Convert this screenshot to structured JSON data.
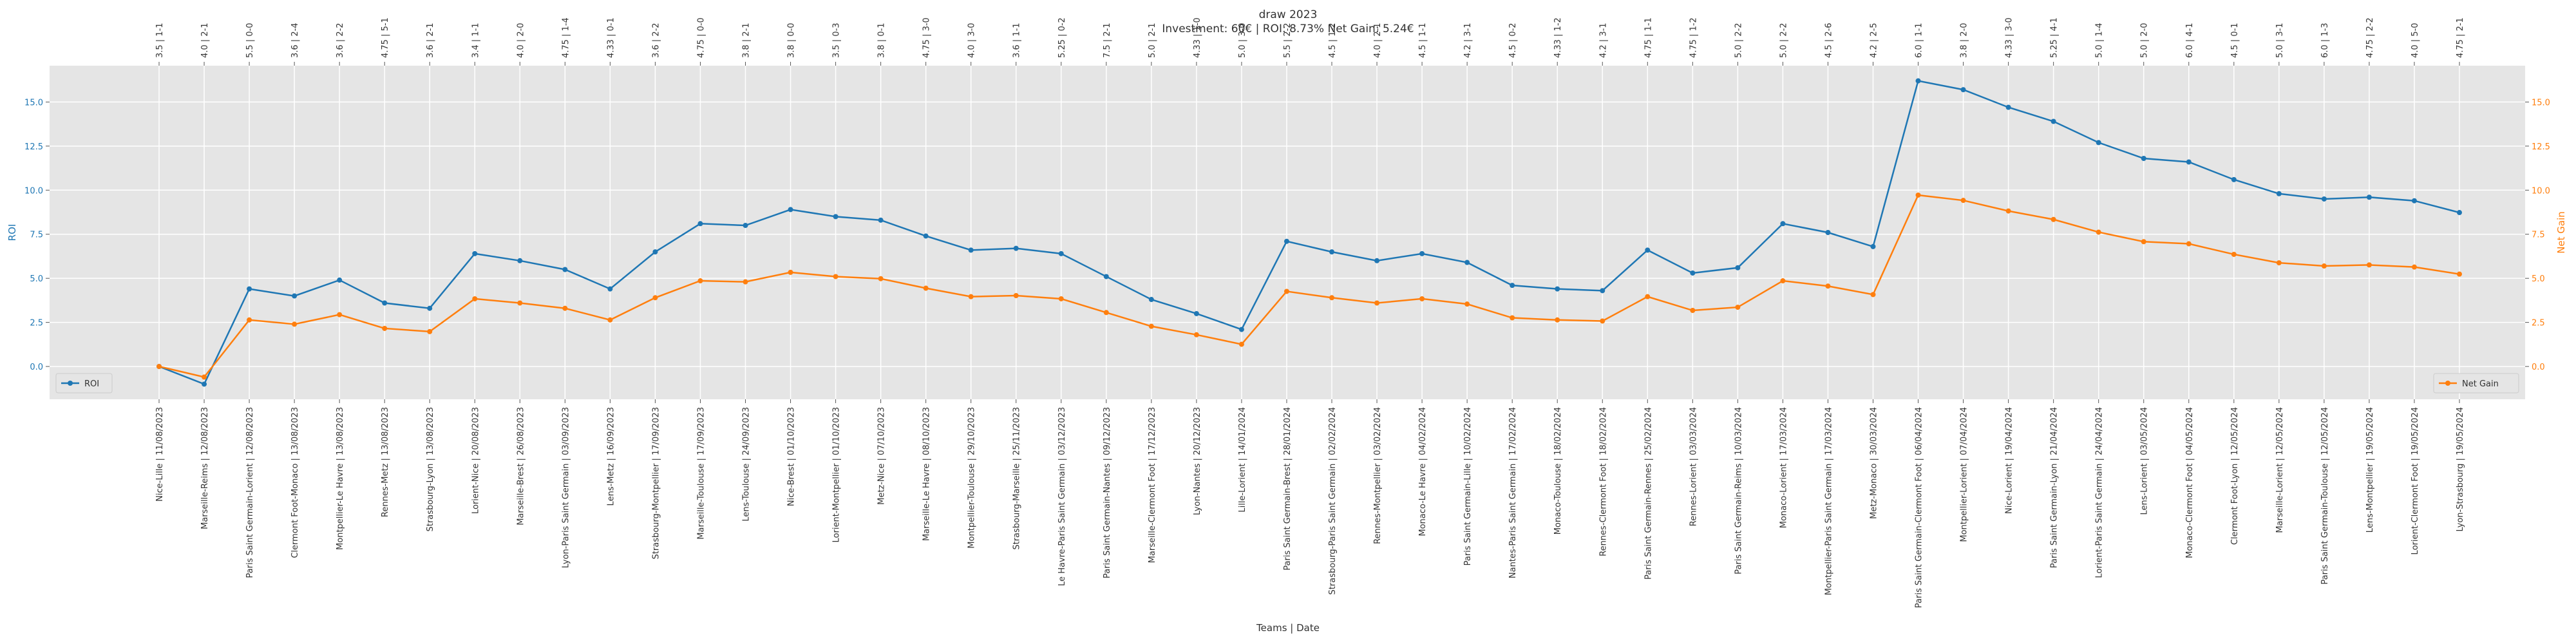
{
  "chart_data": {
    "type": "line",
    "title": "draw 2023",
    "subtitle": "Investment: 60€ | ROI: 8.73% Net Gain: 5.24€",
    "x_label": "Teams | Date",
    "y_label": "ROI",
    "y2_label": "Net Gain",
    "categories": [
      "Nice-Lille | 11/08/2023",
      "Marseille-Reims | 12/08/2023",
      "Paris Saint Germain-Lorient | 12/08/2023",
      "Clermont Foot-Monaco | 13/08/2023",
      "Montpellier-Le Havre | 13/08/2023",
      "Rennes-Metz | 13/08/2023",
      "Strasbourg-Lyon | 13/08/2023",
      "Lorient-Nice | 20/08/2023",
      "Marseille-Brest | 26/08/2023",
      "Lyon-Paris Saint Germain | 03/09/2023",
      "Lens-Metz | 16/09/2023",
      "Strasbourg-Montpellier | 17/09/2023",
      "Marseille-Toulouse | 17/09/2023",
      "Lens-Toulouse | 24/09/2023",
      "Nice-Brest | 01/10/2023",
      "Lorient-Montpellier | 01/10/2023",
      "Metz-Nice | 07/10/2023",
      "Marseille-Le Havre | 08/10/2023",
      "Montpellier-Toulouse | 29/10/2023",
      "Strasbourg-Marseille | 25/11/2023",
      "Le Havre-Paris Saint Germain | 03/12/2023",
      "Paris Saint Germain-Nantes | 09/12/2023",
      "Marseille-Clermont Foot | 17/12/2023",
      "Lyon-Nantes | 20/12/2023",
      "Lille-Lorient | 14/01/2024",
      "Paris Saint Germain-Brest | 28/01/2024",
      "Strasbourg-Paris Saint Germain | 02/02/2024",
      "Rennes-Montpellier | 03/02/2024",
      "Monaco-Le Havre | 04/02/2024",
      "Paris Saint Germain-Lille | 10/02/2024",
      "Nantes-Paris Saint Germain | 17/02/2024",
      "Monaco-Toulouse | 18/02/2024",
      "Rennes-Clermont Foot | 18/02/2024",
      "Paris Saint Germain-Rennes | 25/02/2024",
      "Rennes-Lorient | 03/03/2024",
      "Paris Saint Germain-Reims | 10/03/2024",
      "Monaco-Lorient | 17/03/2024",
      "Montpellier-Paris Saint Germain | 17/03/2024",
      "Metz-Monaco | 30/03/2024",
      "Paris Saint Germain-Clermont Foot | 06/04/2024",
      "Montpellier-Lorient | 07/04/2024",
      "Nice-Lorient | 19/04/2024",
      "Paris Saint Germain-Lyon | 21/04/2024",
      "Lorient-Paris Saint Germain | 24/04/2024",
      "Lens-Lorient | 03/05/2024",
      "Monaco-Clermont Foot | 04/05/2024",
      "Clermont Foot-Lyon | 12/05/2024",
      "Marseille-Lorient | 12/05/2024",
      "Paris Saint Germain-Toulouse | 12/05/2024",
      "Lens-Montpellier | 19/05/2024",
      "Lorient-Clermont Foot | 19/05/2024",
      "Lyon-Strasbourg | 19/05/2024"
    ],
    "top_labels": [
      "3.5 | 1-1",
      "4.0 | 2-1",
      "5.5 | 0-0",
      "3.6 | 2-4",
      "3.6 | 2-2",
      "4.75 | 5-1",
      "3.6 | 2-1",
      "3.4 | 1-1",
      "4.0 | 2-0",
      "4.75 | 1-4",
      "4.33 | 0-1",
      "3.6 | 2-2",
      "4.75 | 0-0",
      "3.8 | 2-1",
      "3.8 | 0-0",
      "3.5 | 0-3",
      "3.8 | 0-1",
      "4.75 | 3-0",
      "4.0 | 3-0",
      "3.6 | 1-1",
      "5.25 | 0-2",
      "7.5 | 2-1",
      "5.0 | 2-1",
      "4.33 | 1-0",
      "5.0 | 3-0",
      "5.5 | 2-2",
      "4.5 | 1-2",
      "4.0 | 2-1",
      "4.5 | 1-1",
      "4.2 | 3-1",
      "4.5 | 0-2",
      "4.33 | 1-2",
      "4.2 | 3-1",
      "4.75 | 1-1",
      "4.75 | 1-2",
      "5.0 | 2-2",
      "5.0 | 2-2",
      "4.5 | 2-6",
      "4.2 | 2-5",
      "6.0 | 1-1",
      "3.8 | 2-0",
      "4.33 | 3-0",
      "5.25 | 4-1",
      "5.0 | 1-4",
      "5.0 | 2-0",
      "6.0 | 4-1",
      "4.5 | 0-1",
      "5.0 | 3-1",
      "6.0 | 1-3",
      "4.75 | 2-2",
      "4.0 | 5-0",
      "4.75 | 2-1"
    ],
    "series": [
      {
        "name": "ROI",
        "color": "#1f77b4",
        "values": [
          0,
          -1.0,
          4.4,
          4.0,
          4.9,
          3.6,
          3.3,
          6.4,
          6.0,
          5.5,
          4.4,
          6.5,
          8.1,
          8.0,
          8.9,
          8.5,
          8.3,
          7.4,
          6.6,
          6.7,
          6.4,
          5.1,
          3.8,
          3.0,
          2.1,
          7.1,
          6.5,
          6.0,
          6.4,
          5.9,
          4.6,
          4.4,
          4.3,
          6.6,
          5.3,
          5.6,
          8.1,
          7.6,
          6.8,
          16.2,
          15.7,
          14.7,
          13.9,
          12.7,
          11.8,
          11.6,
          10.6,
          9.8,
          9.5,
          9.6,
          9.4,
          8.73
        ]
      },
      {
        "name": "Net Gain",
        "color": "#ff7f0e",
        "axis": "y2",
        "values": [
          0,
          -0.6,
          2.64,
          2.4,
          2.94,
          2.16,
          1.98,
          3.84,
          3.6,
          3.3,
          2.64,
          3.9,
          4.86,
          4.8,
          5.34,
          5.1,
          4.98,
          4.44,
          3.96,
          4.02,
          3.84,
          3.06,
          2.28,
          1.8,
          1.26,
          4.26,
          3.9,
          3.6,
          3.84,
          3.54,
          2.76,
          2.64,
          2.58,
          3.96,
          3.18,
          3.36,
          4.86,
          4.56,
          4.08,
          9.72,
          9.42,
          8.82,
          8.34,
          7.62,
          7.08,
          6.96,
          6.36,
          5.88,
          5.7,
          5.76,
          5.64,
          5.24
        ]
      }
    ],
    "ylim": [
      -1.86,
      17.06
    ],
    "yticks": [
      {
        "value": 0,
        "label": "0.0"
      },
      2.5,
      {
        "value": 5,
        "label": "5.0"
      },
      7.5,
      {
        "value": 10,
        "label": "10.0"
      },
      12.5,
      {
        "value": 15,
        "label": "15.0"
      }
    ],
    "y2lim": [
      -1.86,
      17.06
    ],
    "y2ticks": [
      {
        "value": 0,
        "label": "0.0"
      },
      2.5,
      {
        "value": 5,
        "label": "5.0"
      },
      7.5,
      {
        "value": 10,
        "label": "10.0"
      },
      12.5,
      {
        "value": 15,
        "label": "15.0"
      }
    ],
    "grid": true,
    "legend": [
      "lower left",
      "lower right"
    ]
  }
}
